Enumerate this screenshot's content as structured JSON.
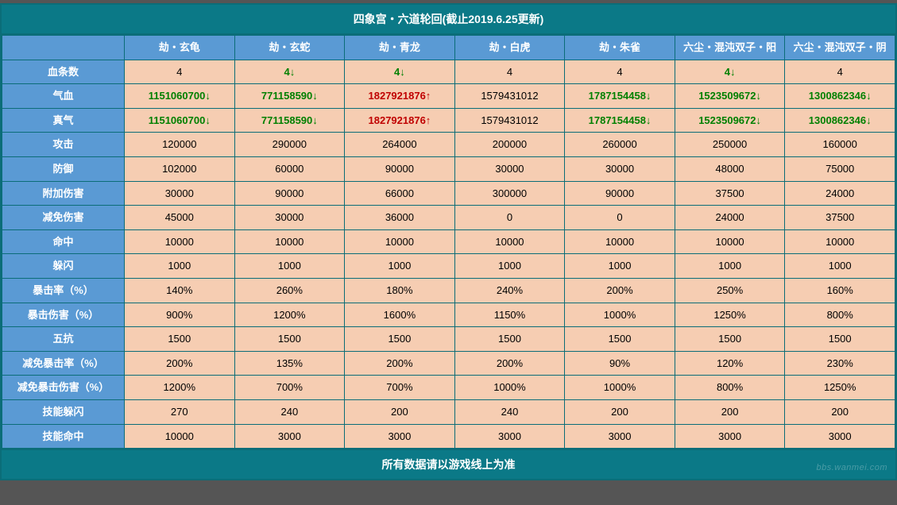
{
  "title": "四象宫・六道轮回(截止2019.6.25更新)",
  "footer": "所有数据请以游戏线上为准",
  "watermark": "bbs.wanmei.com",
  "colors": {
    "header_bg": "#5a9ad4",
    "header_fg": "#ffffff",
    "cell_bg": "#f6cdb2",
    "border": "#0b6d78",
    "title_bg": "#0b7987",
    "up": "#c00000",
    "down": "#008000"
  },
  "columns": [
    {
      "key": "c1",
      "label": "劫・玄龟"
    },
    {
      "key": "c2",
      "label": "劫・玄蛇"
    },
    {
      "key": "c3",
      "label": "劫・青龙"
    },
    {
      "key": "c4",
      "label": "劫・白虎"
    },
    {
      "key": "c5",
      "label": "劫・朱雀"
    },
    {
      "key": "c6",
      "label": "六尘・混沌双子・阳"
    },
    {
      "key": "c7",
      "label": "六尘・混沌双子・阴"
    }
  ],
  "rows": [
    {
      "label": "血条数",
      "cells": [
        {
          "v": "4"
        },
        {
          "v": "4↓",
          "c": "green"
        },
        {
          "v": "4↓",
          "c": "green"
        },
        {
          "v": "4"
        },
        {
          "v": "4"
        },
        {
          "v": "4↓",
          "c": "green"
        },
        {
          "v": "4"
        }
      ]
    },
    {
      "label": "气血",
      "cells": [
        {
          "v": "1151060700↓",
          "c": "green"
        },
        {
          "v": "771158590↓",
          "c": "green"
        },
        {
          "v": "1827921876↑",
          "c": "red"
        },
        {
          "v": "1579431012"
        },
        {
          "v": "1787154458↓",
          "c": "green"
        },
        {
          "v": "1523509672↓",
          "c": "green"
        },
        {
          "v": "1300862346↓",
          "c": "green"
        }
      ]
    },
    {
      "label": "真气",
      "cells": [
        {
          "v": "1151060700↓",
          "c": "green"
        },
        {
          "v": "771158590↓",
          "c": "green"
        },
        {
          "v": "1827921876↑",
          "c": "red"
        },
        {
          "v": "1579431012"
        },
        {
          "v": "1787154458↓",
          "c": "green"
        },
        {
          "v": "1523509672↓",
          "c": "green"
        },
        {
          "v": "1300862346↓",
          "c": "green"
        }
      ]
    },
    {
      "label": "攻击",
      "cells": [
        {
          "v": "120000"
        },
        {
          "v": "290000"
        },
        {
          "v": "264000"
        },
        {
          "v": "200000"
        },
        {
          "v": "260000"
        },
        {
          "v": "250000"
        },
        {
          "v": "160000"
        }
      ]
    },
    {
      "label": "防御",
      "cells": [
        {
          "v": "102000"
        },
        {
          "v": "60000"
        },
        {
          "v": "90000"
        },
        {
          "v": "30000"
        },
        {
          "v": "30000"
        },
        {
          "v": "48000"
        },
        {
          "v": "75000"
        }
      ]
    },
    {
      "label": "附加伤害",
      "cells": [
        {
          "v": "30000"
        },
        {
          "v": "90000"
        },
        {
          "v": "66000"
        },
        {
          "v": "300000"
        },
        {
          "v": "90000"
        },
        {
          "v": "37500"
        },
        {
          "v": "24000"
        }
      ]
    },
    {
      "label": "减免伤害",
      "cells": [
        {
          "v": "45000"
        },
        {
          "v": "30000"
        },
        {
          "v": "36000"
        },
        {
          "v": "0"
        },
        {
          "v": "0"
        },
        {
          "v": "24000"
        },
        {
          "v": "37500"
        }
      ]
    },
    {
      "label": "命中",
      "cells": [
        {
          "v": "10000"
        },
        {
          "v": "10000"
        },
        {
          "v": "10000"
        },
        {
          "v": "10000"
        },
        {
          "v": "10000"
        },
        {
          "v": "10000"
        },
        {
          "v": "10000"
        }
      ]
    },
    {
      "label": "躲闪",
      "cells": [
        {
          "v": "1000"
        },
        {
          "v": "1000"
        },
        {
          "v": "1000"
        },
        {
          "v": "1000"
        },
        {
          "v": "1000"
        },
        {
          "v": "1000"
        },
        {
          "v": "1000"
        }
      ]
    },
    {
      "label": "暴击率（%）",
      "cells": [
        {
          "v": "140%"
        },
        {
          "v": "260%"
        },
        {
          "v": "180%"
        },
        {
          "v": "240%"
        },
        {
          "v": "200%"
        },
        {
          "v": "250%"
        },
        {
          "v": "160%"
        }
      ]
    },
    {
      "label": "暴击伤害（%）",
      "cells": [
        {
          "v": "900%"
        },
        {
          "v": "1200%"
        },
        {
          "v": "1600%"
        },
        {
          "v": "1150%"
        },
        {
          "v": "1000%"
        },
        {
          "v": "1250%"
        },
        {
          "v": "800%"
        }
      ]
    },
    {
      "label": "五抗",
      "cells": [
        {
          "v": "1500"
        },
        {
          "v": "1500"
        },
        {
          "v": "1500"
        },
        {
          "v": "1500"
        },
        {
          "v": "1500"
        },
        {
          "v": "1500"
        },
        {
          "v": "1500"
        }
      ]
    },
    {
      "label": "减免暴击率（%）",
      "cells": [
        {
          "v": "200%"
        },
        {
          "v": "135%"
        },
        {
          "v": "200%"
        },
        {
          "v": "200%"
        },
        {
          "v": "90%"
        },
        {
          "v": "120%"
        },
        {
          "v": "230%"
        }
      ]
    },
    {
      "label": "减免暴击伤害（%）",
      "cells": [
        {
          "v": "1200%"
        },
        {
          "v": "700%"
        },
        {
          "v": "700%"
        },
        {
          "v": "1000%"
        },
        {
          "v": "1000%"
        },
        {
          "v": "800%"
        },
        {
          "v": "1250%"
        }
      ]
    },
    {
      "label": "技能躲闪",
      "cells": [
        {
          "v": "270"
        },
        {
          "v": "240"
        },
        {
          "v": "200"
        },
        {
          "v": "240"
        },
        {
          "v": "200"
        },
        {
          "v": "200"
        },
        {
          "v": "200"
        }
      ]
    },
    {
      "label": "技能命中",
      "cells": [
        {
          "v": "10000"
        },
        {
          "v": "3000"
        },
        {
          "v": "3000"
        },
        {
          "v": "3000"
        },
        {
          "v": "3000"
        },
        {
          "v": "3000"
        },
        {
          "v": "3000"
        }
      ]
    }
  ]
}
